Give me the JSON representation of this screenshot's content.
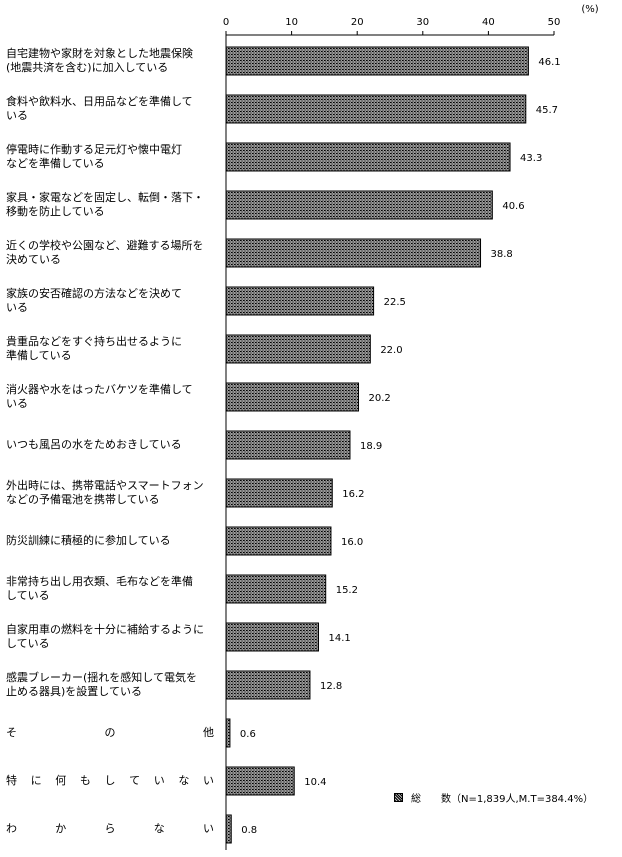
{
  "chart_data": {
    "type": "bar",
    "orientation": "horizontal",
    "unit_label": "(%)",
    "xlim": [
      0,
      50
    ],
    "ticks": [
      "0",
      "10",
      "20",
      "30",
      "40",
      "50"
    ],
    "categories": [
      "自宅建物や家財を対象とした地震保険\n(地震共済を含む)に加入している",
      "食料や飲料水、日用品などを準備して\nいる",
      "停電時に作動する足元灯や懐中電灯\nなどを準備している",
      "家具・家電などを固定し、転倒・落下・\n移動を防止している",
      "近くの学校や公園など、避難する場所を\n決めている",
      "家族の安否確認の方法などを決めて\nいる",
      "貴重品などをすぐ持ち出せるように\n準備している",
      "消火器や水をはったバケツを準備して\nいる",
      "いつも風呂の水をためおきしている",
      "外出時には、携帯電話やスマートフォン\nなどの予備電池を携帯している",
      "防災訓練に積極的に参加している",
      "非常持ち出し用衣類、毛布などを準備\nしている",
      "自家用車の燃料を十分に補給するように\nしている",
      "感震ブレーカー(揺れを感知して電気を\n止める器具)を設置している",
      "そ　の　他",
      "特に何もしていない",
      "わからない"
    ],
    "values": [
      46.1,
      45.7,
      43.3,
      40.6,
      38.8,
      22.5,
      22.0,
      20.2,
      18.9,
      16.2,
      16.0,
      15.2,
      14.1,
      12.8,
      0.6,
      10.4,
      0.8
    ],
    "value_labels": [
      "46.1",
      "45.7",
      "43.3",
      "40.6",
      "38.8",
      "22.5",
      "22.0",
      "20.2",
      "18.9",
      "16.2",
      "16.0",
      "15.2",
      "14.1",
      "12.8",
      "0.6",
      "10.4",
      "0.8"
    ],
    "legend": "総　　数（N=1,839人,M.T=384.4%）"
  }
}
